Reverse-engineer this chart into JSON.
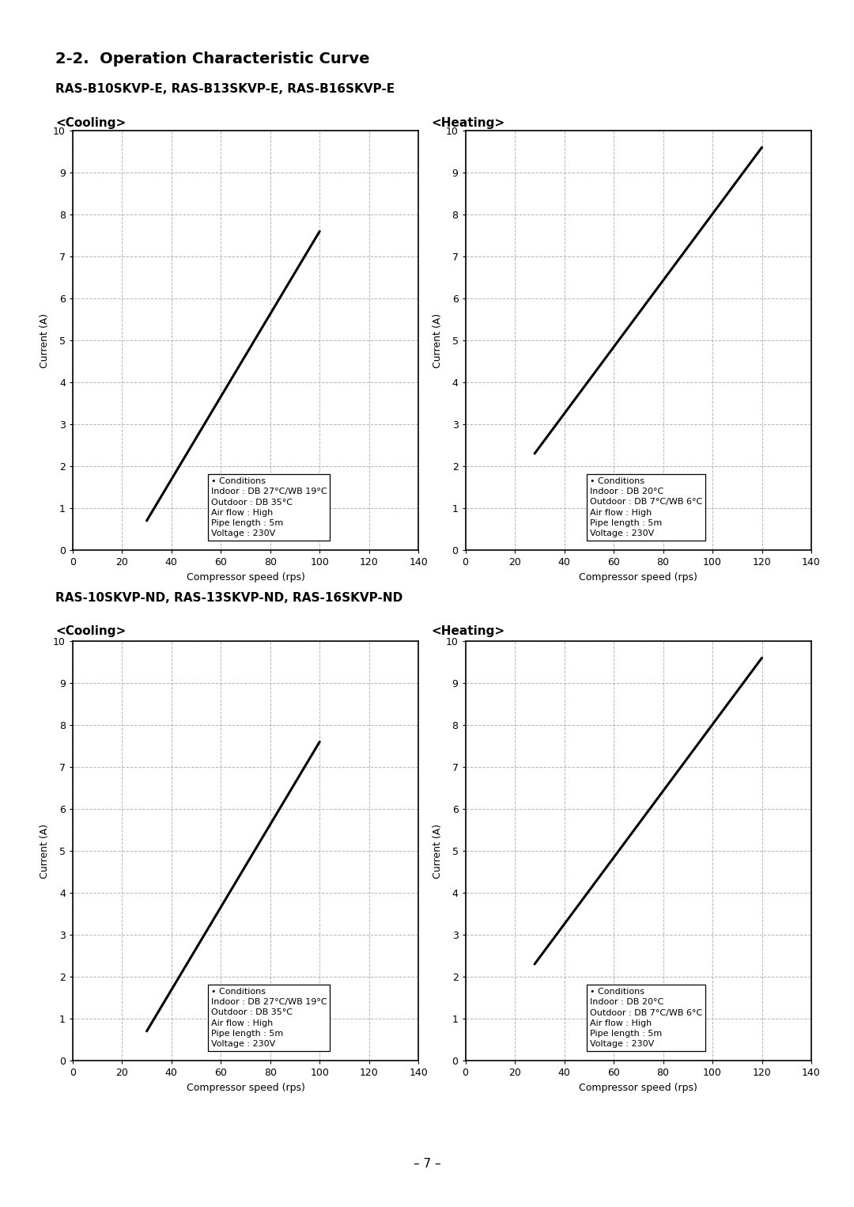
{
  "main_title": "2-2.  Operation Characteristic Curve",
  "subtitle1": "RAS-B10SKVP-E, RAS-B13SKVP-E, RAS-B16SKVP-E",
  "subtitle2": "RAS-10SKVP-ND, RAS-13SKVP-ND, RAS-16SKVP-ND",
  "cooling_label": "<Cooling>",
  "heating_label": "<Heating>",
  "xlabel": "Compressor speed (rps)",
  "ylabel": "Current (A)",
  "xlim": [
    0,
    140
  ],
  "ylim": [
    0,
    10
  ],
  "xticks": [
    0,
    20,
    40,
    60,
    80,
    100,
    120,
    140
  ],
  "yticks": [
    0,
    1,
    2,
    3,
    4,
    5,
    6,
    7,
    8,
    9,
    10
  ],
  "cooling_line_x": [
    30,
    100
  ],
  "cooling_line_y": [
    0.7,
    7.6
  ],
  "heating_line_x": [
    28,
    120
  ],
  "heating_line_y": [
    2.3,
    9.6
  ],
  "cooling_conditions": "• Conditions\nIndoor : DB 27°C/WB 19°C\nOutdoor : DB 35°C\nAir flow : High\nPipe length : 5m\nVoltage : 230V",
  "heating_conditions": "• Conditions\nIndoor : DB 20°C\nOutdoor : DB 7°C/WB 6°C\nAir flow : High\nPipe length : 5m\nVoltage : 230V",
  "page_number": "– 7 –",
  "background_color": "#ffffff",
  "line_color": "#000000",
  "grid_color": "#999999",
  "text_color": "#000000",
  "main_title_fontsize": 14,
  "subtitle_fontsize": 11,
  "section_label_fontsize": 11,
  "axis_label_fontsize": 9,
  "tick_fontsize": 9,
  "conditions_fontsize": 8,
  "page_fontsize": 11
}
